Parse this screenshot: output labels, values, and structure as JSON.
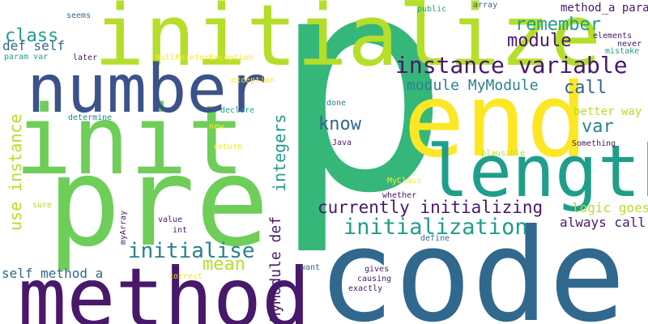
{
  "palette": {
    "background": "#ffffff",
    "dark_purple": "#48186a",
    "indigo": "#3b528b",
    "steel_blue": "#31688e",
    "teal": "#26828e",
    "green_teal": "#1f9e89",
    "green": "#35b779",
    "light_green": "#6ece58",
    "lime": "#b5de2b",
    "yellow": "#fde725"
  },
  "words": {
    "p": "p",
    "code": "code",
    "initialize": "initialize",
    "pre": "pre",
    "init": "init",
    "method": "method",
    "number": "number",
    "end": "end",
    "length": "length",
    "instance_variable": "instance variable",
    "initialization": "initialization",
    "currently_initializing": "currently initializing",
    "initialise": "initialise",
    "mean": "mean",
    "module_mymodule": "module MyModule",
    "remember": "remember",
    "module": "module",
    "call": "call",
    "know": "know",
    "var": "var",
    "class": "class",
    "def_self": "def self",
    "self_method_a": "self method_a",
    "logic_goes": "logic goes",
    "always_call": "always call",
    "better_way": "better way",
    "method_a_param": "method_a param",
    "use_instance": "use instance",
    "integers": "integers",
    "mymodule_def": "MyModule def",
    "seems": "seems",
    "public": "public",
    "array": "array",
    "elements": "elements",
    "never": "never",
    "mistake": "mistake",
    "param_var": "param var",
    "later": "later",
    "nullpointerexception": "NullPointerException",
    "exception": "exception",
    "declare": "declare",
    "done": "done",
    "determine": "determine",
    "new": "new",
    "return": "return",
    "java": "Java",
    "something": "Something",
    "plausible": "plausible",
    "myclass": "MyClass",
    "whether": "whether",
    "sure": "sure",
    "value": "value",
    "int": "int",
    "myarray": "myArray",
    "define": "define",
    "want": "want",
    "gives": "gives",
    "causing": "causing",
    "exactly": "exactly",
    "correct": "correct"
  }
}
